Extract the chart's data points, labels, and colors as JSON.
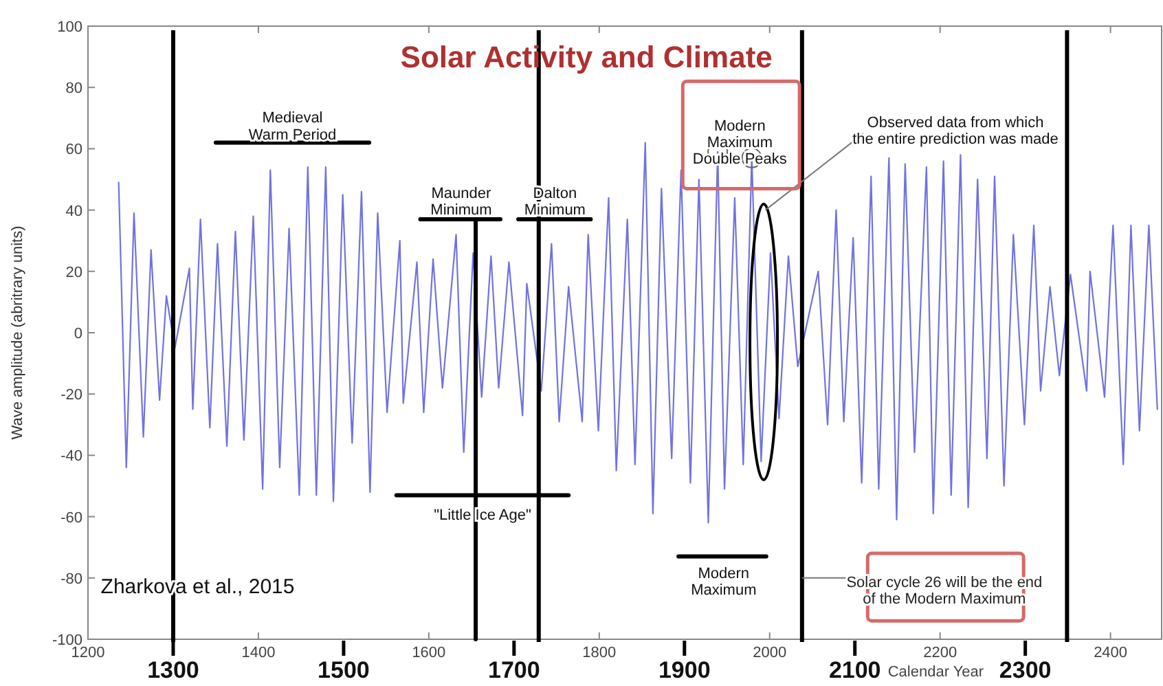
{
  "chart_data": {
    "type": "line",
    "title": "Solar Activity and Climate",
    "xlabel": "Calendar Year",
    "ylabel": "Wave amplitude (abritrary units)",
    "xlim": [
      1200,
      2460
    ],
    "ylim": [
      -100,
      100
    ],
    "xticks": [
      1200,
      1400,
      1600,
      1800,
      2000,
      2200,
      2400
    ],
    "yticks": [
      -100,
      -80,
      -60,
      -40,
      -20,
      0,
      20,
      40,
      60,
      80,
      100
    ],
    "x2lim": [
      1200,
      2460
    ],
    "x2ticks": [
      1300,
      1500,
      1700,
      1900,
      2100,
      2300
    ],
    "grid": false,
    "series": [
      {
        "color": "#7272e0",
        "x": [
          1236,
          1245,
          1254,
          1265,
          1274,
          1284,
          1292,
          1302,
          1319,
          1323,
          1332,
          1343,
          1352,
          1363,
          1373,
          1383,
          1394,
          1405,
          1414,
          1425,
          1436,
          1448,
          1458,
          1468,
          1479,
          1488,
          1499,
          1510,
          1521,
          1531,
          1540,
          1551,
          1566,
          1570,
          1586,
          1594,
          1605,
          1616,
          1632,
          1641,
          1652,
          1662,
          1673,
          1682,
          1694,
          1710,
          1715,
          1732,
          1744,
          1753,
          1764,
          1780,
          1787,
          1799,
          1811,
          1820,
          1833,
          1842,
          1854,
          1863,
          1873,
          1885,
          1896,
          1907,
          1917,
          1928,
          1939,
          1947,
          1959,
          1969,
          1979,
          1990,
          2001,
          2011,
          2022,
          2033,
          2057,
          2068,
          2078,
          2087,
          2098,
          2108,
          2119,
          2128,
          2140,
          2149,
          2159,
          2170,
          2184,
          2192,
          2204,
          2213,
          2224,
          2233,
          2244,
          2255,
          2264,
          2275,
          2286,
          2299,
          2310,
          2318,
          2329,
          2340,
          2353,
          2372,
          2376,
          2393,
          2403,
          2415,
          2424,
          2434,
          2445,
          2455
        ],
        "values": [
          49,
          -44,
          39,
          -34,
          27,
          -22,
          12,
          -5,
          21,
          -25,
          37,
          -31,
          29,
          -37,
          33,
          -35,
          38,
          -51,
          53,
          -44,
          34,
          -53,
          54,
          -53,
          54,
          -55,
          45,
          -36,
          46,
          -52,
          39,
          -26,
          30,
          -23,
          23,
          -26,
          24,
          -18,
          32,
          -39,
          26,
          -21,
          25,
          -18,
          23,
          -27,
          16,
          -19,
          29,
          -29,
          15,
          -29,
          32,
          -32,
          44,
          -45,
          37,
          -43,
          62,
          -59,
          47,
          -41,
          53,
          -49,
          50,
          -62,
          59,
          -51,
          44,
          -43,
          57,
          -42,
          26,
          -28,
          25,
          -11,
          20,
          -30,
          40,
          -29,
          31,
          -49,
          51,
          -51,
          57,
          -61,
          55,
          -39,
          54,
          -59,
          56,
          -53,
          58,
          -57,
          50,
          -41,
          51,
          -50,
          32,
          -30,
          35,
          -19,
          15,
          -14,
          19,
          -19,
          20,
          -21,
          35,
          -43,
          35,
          -32,
          35,
          -25
        ]
      },
      {
        "color": "#000000",
        "x": [
          1350,
          1530
        ],
        "values": [
          62,
          62
        ]
      },
      {
        "color": "#000000",
        "x": [
          1590,
          1684
        ],
        "values": [
          37,
          37
        ]
      },
      {
        "color": "#000000",
        "x": [
          1705,
          1790
        ],
        "values": [
          37,
          37
        ]
      },
      {
        "color": "#000000",
        "x": [
          1655,
          1655
        ],
        "values": [
          37,
          -100
        ]
      },
      {
        "color": "#000000",
        "x": [
          1562,
          1764
        ],
        "values": [
          -53,
          -53
        ]
      },
      {
        "color": "#000000",
        "x": [
          1893,
          1996
        ],
        "values": [
          -73,
          -73
        ]
      }
    ],
    "ref_lines": [
      {
        "axis": "x",
        "value": 1300,
        "color": "#000000"
      },
      {
        "axis": "x",
        "value": 1729,
        "color": "#000000"
      },
      {
        "axis": "x",
        "value": 2038,
        "color": "#000000"
      },
      {
        "axis": "x",
        "value": 2349,
        "color": "#000000"
      }
    ],
    "annotations": [
      "Medieval\nWarm Period",
      "Maunder\nMinimum",
      "Dalton\nMinimum",
      "\"Little Ice Age\"",
      "Modern\nMaximum\nDouble Peaks",
      "Observed data from which\nthe entire prediction was made",
      "Modern\nMaximum",
      {
        "text": "Solar cycle 26 will be the end\nof the Modern Maximum",
        "x": 2038,
        "y": -80
      },
      "Zharkova et al., 2015"
    ]
  }
}
